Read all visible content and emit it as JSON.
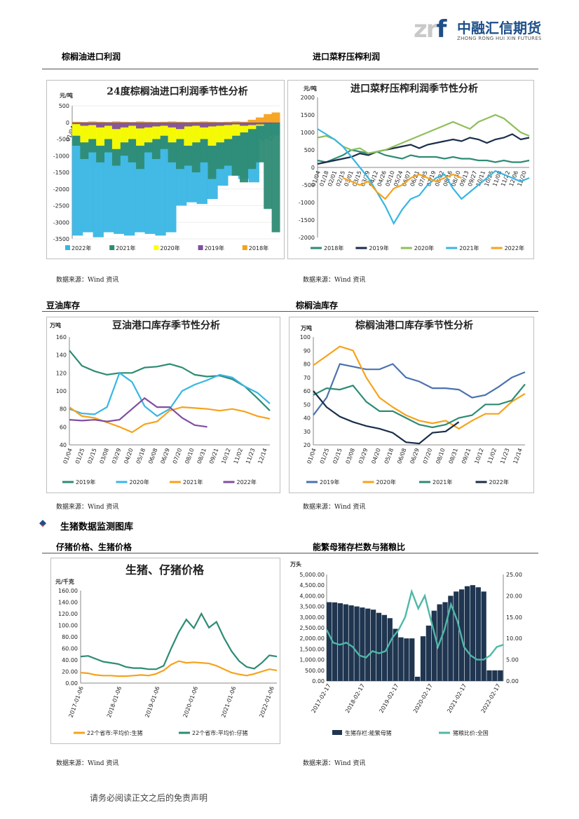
{
  "header": {
    "logo_mark_z": "z",
    "logo_mark_r": "r",
    "logo_mark_f": "f",
    "company_cn": "中融汇信期货",
    "company_en": "ZHONG RONG HUI XIN FUTURES"
  },
  "sections": {
    "palm_profit": "棕榈油进口利润",
    "rapeseed_profit": "进口菜籽压榨利润",
    "soy_stock": "豆油库存",
    "palm_stock": "棕榈油库存",
    "hog_header": "生猪数据监测图库",
    "piglet_price": "仔猪价格、生猪价格",
    "sow_ratio": "能繁母猪存栏数与猪粮比"
  },
  "source_text": "数据来源：Wind 资讯",
  "footer": "请务必阅读正文之后的免责声明",
  "colors": {
    "accent_blue": "#1e4f8a",
    "teal": "#2e8b74",
    "sky": "#38b6e4",
    "orange": "#f7a21b",
    "purple": "#7f4fa0",
    "yellow": "#ffff00",
    "navy": "#1a2e4a",
    "green": "#8fbf5a"
  },
  "chart_data": [
    {
      "id": "palm",
      "type": "area",
      "title": "24度棕榈油进口利润季节性分析",
      "unit": "元/吨",
      "ylim": [
        -3500,
        500
      ],
      "yticks": [
        "500",
        "0",
        "-500",
        "-1000",
        "-1500",
        "-2000",
        "-2500",
        "-3000",
        "-3500"
      ],
      "xticks": [
        "01/04",
        "01/18",
        "02/01",
        "02/15",
        "03/01",
        "03/15",
        "03/29",
        "04/12",
        "04/26",
        "05/10",
        "05/24",
        "06/07",
        "06/21",
        "07/05",
        "07/19",
        "08/02",
        "08/16",
        "08/30",
        "09/13",
        "09/27",
        "10/11",
        "10/25",
        "11/08",
        "11/22",
        "12/06",
        "12/20"
      ],
      "legend": [
        "2022年",
        "2021年",
        "2020年",
        "2019年",
        "2018年"
      ],
      "series": [
        {
          "name": "2022年",
          "values": [
            -3400,
            -3300,
            -3450,
            -3300,
            -3350,
            -3400,
            -3300,
            -3350,
            -3400,
            -3300,
            -2500,
            -2400,
            -2450,
            -2300,
            -1900,
            -1600,
            -1700,
            -1800,
            -500,
            -400
          ]
        },
        {
          "name": "2021年",
          "values": [
            -700,
            -1100,
            -900,
            -1200,
            -900,
            -1300,
            -1000,
            -1200,
            -1400,
            -900,
            -1100,
            -800,
            -1200,
            -1400,
            -1300,
            -1500,
            -1200,
            -1700,
            -1400,
            -1300,
            -1600,
            -1800,
            -1400,
            -1200,
            -2600,
            -3300
          ]
        },
        {
          "name": "2020年",
          "values": [
            -400,
            -600,
            -500,
            -700,
            -500,
            -800,
            -600,
            -500,
            -700,
            -600,
            -500,
            -400,
            -600,
            -500,
            -700,
            -600,
            -500,
            -700,
            -600,
            -500,
            -400,
            -300,
            -200,
            -100,
            0,
            100
          ]
        },
        {
          "name": "2019年",
          "values": [
            -50,
            -100,
            -80,
            -150,
            -100,
            -200,
            -150,
            -100,
            -180,
            -150,
            -120,
            -100,
            -150,
            -200,
            -120,
            -100,
            -150,
            -120,
            -100,
            -80,
            -60,
            -100,
            -80,
            -60,
            -40,
            -20
          ]
        },
        {
          "name": "2018年",
          "values": [
            20,
            10,
            30,
            20,
            10,
            30,
            20,
            10,
            30,
            20,
            10,
            20,
            30,
            20,
            10,
            20,
            30,
            20,
            10,
            20,
            30,
            20,
            80,
            150,
            250,
            300
          ]
        }
      ]
    },
    {
      "id": "rapeseed",
      "type": "line",
      "title": "进口菜籽压榨利润季节性分析",
      "unit": "元/吨",
      "ylim": [
        -2000,
        2000
      ],
      "yticks": [
        "2000",
        "1500",
        "1000",
        "500",
        "0",
        "-500",
        "-1000",
        "-1500",
        "-2000"
      ],
      "xticks": [
        "01/04",
        "01/18",
        "02/01",
        "02/15",
        "03/01",
        "03/15",
        "03/29",
        "04/12",
        "04/26",
        "05/10",
        "05/24",
        "06/07",
        "06/21",
        "07/05",
        "07/19",
        "08/02",
        "08/16",
        "08/30",
        "09/13",
        "09/27",
        "10/11",
        "10/25",
        "11/08",
        "11/22",
        "12/06",
        "12/20"
      ],
      "legend": [
        "2018年",
        "2019年",
        "2020年",
        "2021年",
        "2022年"
      ],
      "series": [
        {
          "name": "2018年",
          "values": [
            200,
            150,
            250,
            350,
            500,
            450,
            400,
            450,
            350,
            300,
            250,
            350,
            300,
            300,
            300,
            250,
            300,
            250,
            250,
            200,
            200,
            150,
            200,
            150,
            150,
            200
          ]
        },
        {
          "name": "2019年",
          "values": [
            100,
            150,
            200,
            250,
            300,
            400,
            350,
            450,
            500,
            550,
            600,
            650,
            550,
            650,
            700,
            750,
            800,
            750,
            850,
            800,
            700,
            800,
            850,
            950,
            800,
            850
          ]
        },
        {
          "name": "2020年",
          "values": [
            850,
            900,
            800,
            600,
            500,
            550,
            400,
            450,
            500,
            600,
            700,
            800,
            900,
            1000,
            1100,
            1200,
            1300,
            1200,
            1100,
            1300,
            1400,
            1500,
            1400,
            1200,
            1000,
            900
          ]
        },
        {
          "name": "2021年",
          "values": [
            1100,
            950,
            800,
            600,
            300,
            0,
            -300,
            -700,
            -1100,
            -1600,
            -1200,
            -900,
            -800,
            -500,
            -300,
            -200,
            -600,
            -900,
            -700,
            -500,
            -300,
            -100,
            -200,
            -300,
            -400,
            -300
          ]
        },
        {
          "name": "2022年",
          "values": [
            null,
            null,
            null,
            -300,
            -400,
            -500,
            -400,
            -700,
            -900,
            -600,
            -500,
            -300,
            -200,
            -300,
            -400,
            -300,
            -200,
            -300,
            null,
            null,
            null,
            null,
            null,
            null,
            null,
            null
          ]
        }
      ]
    },
    {
      "id": "soy",
      "type": "line",
      "title": "豆油港口库存季节性分析",
      "unit": "万吨",
      "ylim": [
        40,
        160
      ],
      "yticks": [
        "160",
        "140",
        "120",
        "100",
        "80",
        "60",
        "40"
      ],
      "xticks": [
        "01/04",
        "01/25",
        "02/15",
        "03/08",
        "03/29",
        "04/20",
        "05/18",
        "06/08",
        "06/29",
        "07/20",
        "08/10",
        "08/31",
        "09/21",
        "10/12",
        "11/02",
        "11/23",
        "12/14"
      ],
      "legend": [
        "2019年",
        "2020年",
        "2021年",
        "2022年"
      ],
      "series": [
        {
          "name": "2019年",
          "values": [
            145,
            128,
            122,
            118,
            120,
            120,
            126,
            127,
            130,
            126,
            118,
            116,
            117,
            113,
            105,
            92,
            78
          ]
        },
        {
          "name": "2020年",
          "values": [
            80,
            75,
            74,
            82,
            120,
            110,
            83,
            72,
            80,
            100,
            107,
            112,
            118,
            115,
            105,
            98,
            86
          ]
        },
        {
          "name": "2021年",
          "values": [
            82,
            72,
            70,
            65,
            60,
            54,
            63,
            66,
            78,
            82,
            81,
            80,
            78,
            80,
            77,
            72,
            69
          ]
        },
        {
          "name": "2022年",
          "values": [
            68,
            67,
            68,
            66,
            68,
            80,
            92,
            82,
            82,
            70,
            62,
            60,
            null,
            null,
            null,
            null,
            null
          ]
        }
      ]
    },
    {
      "id": "palmstock",
      "type": "line",
      "title": "棕榈油港口库存季节性分析",
      "unit": "万吨",
      "ylim": [
        20,
        100
      ],
      "yticks": [
        "100",
        "90",
        "80",
        "70",
        "60",
        "50",
        "40",
        "30",
        "20"
      ],
      "xticks": [
        "01/04",
        "01/25",
        "02/15",
        "03/08",
        "03/29",
        "04/20",
        "05/18",
        "06/08",
        "06/29",
        "07/20",
        "08/10",
        "08/31",
        "09/21",
        "10/12",
        "11/02",
        "11/23",
        "12/14"
      ],
      "legend": [
        "2019年",
        "2020年",
        "2021年",
        "2022年"
      ],
      "series": [
        {
          "name": "2019年",
          "values": [
            42,
            55,
            80,
            78,
            76,
            76,
            80,
            70,
            67,
            62,
            62,
            61,
            55,
            57,
            63,
            70,
            74
          ]
        },
        {
          "name": "2020年",
          "values": [
            79,
            86,
            93,
            90,
            70,
            55,
            48,
            42,
            38,
            36,
            38,
            32,
            38,
            43,
            43,
            52,
            58
          ]
        },
        {
          "name": "2021年",
          "values": [
            57,
            62,
            61,
            64,
            52,
            45,
            45,
            40,
            35,
            33,
            35,
            40,
            42,
            50,
            50,
            53,
            65
          ]
        },
        {
          "name": "2022年",
          "values": [
            60,
            48,
            41,
            37,
            34,
            32,
            29,
            22,
            21,
            29,
            30,
            37,
            null,
            null,
            null,
            null,
            null
          ]
        }
      ]
    },
    {
      "id": "hog",
      "type": "line",
      "title": "生猪、仔猪价格",
      "unit": "元/千克",
      "ylim": [
        0,
        160
      ],
      "yticks": [
        "160.00",
        "140.00",
        "120.00",
        "100.00",
        "80.00",
        "60.00",
        "40.00",
        "20.00",
        "0.00"
      ],
      "xticks": [
        "2017-01-06",
        "2018-01-06",
        "2019-01-06",
        "2020-01-06",
        "2021-01-06",
        "2022-01-06"
      ],
      "legend": [
        "22个省市:平均价:生猪",
        "22个省市:平均价:仔猪"
      ],
      "series": [
        {
          "name": "22个省市:平均价:生猪",
          "values": [
            18,
            17,
            14,
            13,
            13,
            12,
            12,
            13,
            14,
            13,
            16,
            22,
            32,
            38,
            35,
            36,
            35,
            34,
            30,
            24,
            18,
            15,
            13,
            16,
            20,
            24,
            22
          ]
        },
        {
          "name": "22个省市:平均价:仔猪",
          "values": [
            46,
            47,
            42,
            37,
            35,
            33,
            28,
            26,
            26,
            24,
            24,
            30,
            60,
            88,
            110,
            95,
            120,
            96,
            106,
            78,
            55,
            38,
            28,
            25,
            35,
            48,
            46
          ]
        }
      ]
    },
    {
      "id": "sow",
      "type": "bar",
      "title": "",
      "unit": "万头",
      "ylim": [
        0,
        5000
      ],
      "y2lim": [
        0,
        25
      ],
      "yticks": [
        "5,000.00",
        "4,500.00",
        "4,000.00",
        "3,500.00",
        "3,000.00",
        "2,500.00",
        "2,000.00",
        "1,500.00",
        "1,000.00",
        "500.00",
        "0.00"
      ],
      "y2ticks": [
        "25.00",
        "20.00",
        "15.00",
        "10.00",
        "5.00",
        "0.00"
      ],
      "xticks": [
        "2017-02-17",
        "2018-02-17",
        "2019-02-17",
        "2020-02-17",
        "2021-02-17",
        "2022-02-17"
      ],
      "legend": [
        "生猪存栏:能繁母猪",
        "猪粮比价:全国"
      ],
      "series": [
        {
          "name": "生猪存栏:能繁母猪",
          "values": [
            3700,
            3690,
            3650,
            3600,
            3550,
            3500,
            3450,
            3400,
            3350,
            3200,
            3100,
            2950,
            2450,
            2050,
            2000,
            2000,
            200,
            2100,
            2600,
            3300,
            3600,
            3700,
            4000,
            4200,
            4300,
            4450,
            4500,
            4400,
            4200,
            500,
            500,
            500
          ]
        },
        {
          "name": "猪粮比价:全国",
          "values": [
            12,
            9,
            8.5,
            9,
            8,
            6,
            5.5,
            7,
            6.5,
            7,
            10,
            12,
            15,
            21,
            17,
            20,
            14,
            8,
            12,
            18,
            14,
            8,
            6,
            5,
            5,
            6,
            8,
            8.5
          ]
        }
      ]
    }
  ]
}
